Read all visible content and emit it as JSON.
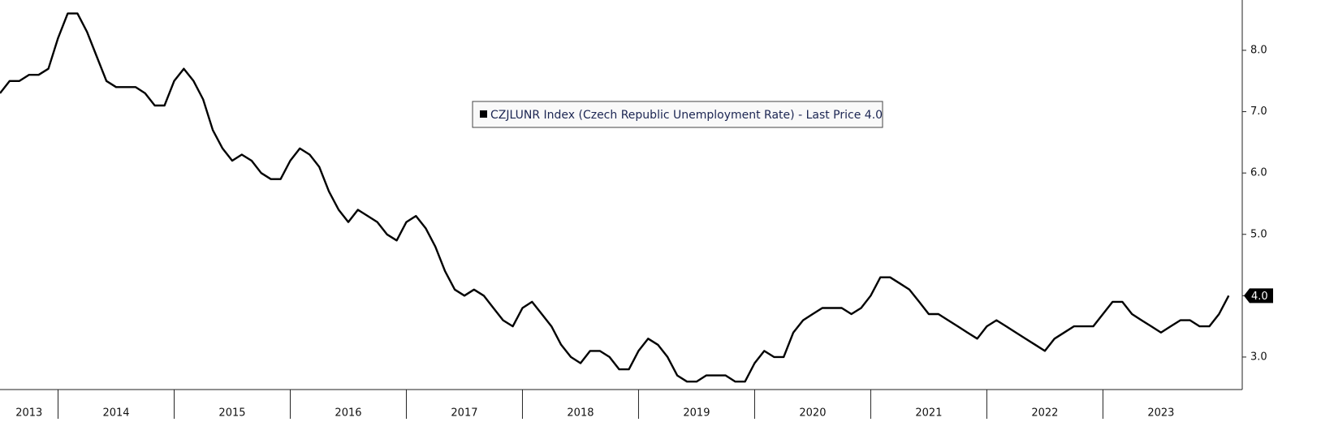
{
  "chart_data": {
    "type": "line",
    "series": [
      {
        "name": "CZJLUNR Index (Czech Republic Unemployment Rate) - Last Price 4.0",
        "color": "#000000",
        "values": [
          7.3,
          7.5,
          7.5,
          7.6,
          7.6,
          7.7,
          8.2,
          8.6,
          8.6,
          8.3,
          7.9,
          7.5,
          7.4,
          7.4,
          7.4,
          7.3,
          7.1,
          7.1,
          7.5,
          7.7,
          7.5,
          7.2,
          6.7,
          6.4,
          6.2,
          6.3,
          6.2,
          6.0,
          5.9,
          5.9,
          6.2,
          6.4,
          6.3,
          6.1,
          5.7,
          5.4,
          5.2,
          5.4,
          5.3,
          5.2,
          5.0,
          4.9,
          5.2,
          5.3,
          5.1,
          4.8,
          4.4,
          4.1,
          4.0,
          4.1,
          4.0,
          3.8,
          3.6,
          3.5,
          3.8,
          3.9,
          3.7,
          3.5,
          3.2,
          3.0,
          2.9,
          3.1,
          3.1,
          3.0,
          2.8,
          2.8,
          3.1,
          3.3,
          3.2,
          3.0,
          2.7,
          2.6,
          2.6,
          2.7,
          2.7,
          2.7,
          2.6,
          2.6,
          2.9,
          3.1,
          3.0,
          3.0,
          3.4,
          3.6,
          3.7,
          3.8,
          3.8,
          3.8,
          3.7,
          3.8,
          4.0,
          4.3,
          4.3,
          4.2,
          4.1,
          3.9,
          3.7,
          3.7,
          3.6,
          3.5,
          3.4,
          3.3,
          3.5,
          3.6,
          3.5,
          3.4,
          3.3,
          3.2,
          3.1,
          3.3,
          3.4,
          3.5,
          3.5,
          3.5,
          3.7,
          3.9,
          3.9,
          3.7,
          3.6,
          3.5,
          3.4,
          3.5,
          3.6,
          3.6,
          3.5,
          3.5,
          3.7,
          4.0
        ]
      }
    ],
    "x": [
      2013.5,
      2013.583,
      2013.667,
      2013.75,
      2013.833,
      2013.917,
      2014,
      2014.083,
      2014.167,
      2014.25,
      2014.333,
      2014.417,
      2014.5,
      2014.583,
      2014.667,
      2014.75,
      2014.833,
      2014.917,
      2015,
      2015.083,
      2015.167,
      2015.25,
      2015.333,
      2015.417,
      2015.5,
      2015.583,
      2015.667,
      2015.75,
      2015.833,
      2015.917,
      2016,
      2016.083,
      2016.167,
      2016.25,
      2016.333,
      2016.417,
      2016.5,
      2016.583,
      2016.667,
      2016.75,
      2016.833,
      2016.917,
      2017,
      2017.083,
      2017.167,
      2017.25,
      2017.333,
      2017.417,
      2017.5,
      2017.583,
      2017.667,
      2017.75,
      2017.833,
      2017.917,
      2018,
      2018.083,
      2018.167,
      2018.25,
      2018.333,
      2018.417,
      2018.5,
      2018.583,
      2018.667,
      2018.75,
      2018.833,
      2018.917,
      2019,
      2019.083,
      2019.167,
      2019.25,
      2019.333,
      2019.417,
      2019.5,
      2019.583,
      2019.667,
      2019.75,
      2019.833,
      2019.917,
      2020,
      2020.083,
      2020.167,
      2020.25,
      2020.333,
      2020.417,
      2020.5,
      2020.583,
      2020.667,
      2020.75,
      2020.833,
      2020.917,
      2021,
      2021.083,
      2021.167,
      2021.25,
      2021.333,
      2021.417,
      2021.5,
      2021.583,
      2021.667,
      2021.75,
      2021.833,
      2021.917,
      2022,
      2022.083,
      2022.167,
      2022.25,
      2022.333,
      2022.417,
      2022.5,
      2022.583,
      2022.667,
      2022.75,
      2022.833,
      2022.917,
      2023,
      2023.083,
      2023.167,
      2023.25,
      2023.333,
      2023.417,
      2023.5,
      2023.583,
      2023.667,
      2023.75,
      2023.833,
      2023.917,
      2024,
      2024.083
    ],
    "xlim": [
      2013.5,
      2024.2
    ],
    "xticks": [
      {
        "value": 2013,
        "label": "2013"
      },
      {
        "value": 2014,
        "label": "2014"
      },
      {
        "value": 2015,
        "label": "2015"
      },
      {
        "value": 2016,
        "label": "2016"
      },
      {
        "value": 2017,
        "label": "2017"
      },
      {
        "value": 2018,
        "label": "2018"
      },
      {
        "value": 2019,
        "label": "2019"
      },
      {
        "value": 2020,
        "label": "2020"
      },
      {
        "value": 2021,
        "label": "2021"
      },
      {
        "value": 2022,
        "label": "2022"
      },
      {
        "value": 2023,
        "label": "2023"
      }
    ],
    "ylim": [
      2.47,
      8.82
    ],
    "yticks": [
      {
        "value": 3,
        "label": "3.0"
      },
      {
        "value": 4,
        "label": "4.0"
      },
      {
        "value": 5,
        "label": "5.0"
      },
      {
        "value": 6,
        "label": "6.0"
      },
      {
        "value": 7,
        "label": "7.0"
      },
      {
        "value": 8,
        "label": "8.0"
      }
    ],
    "last_label": "4.0"
  }
}
